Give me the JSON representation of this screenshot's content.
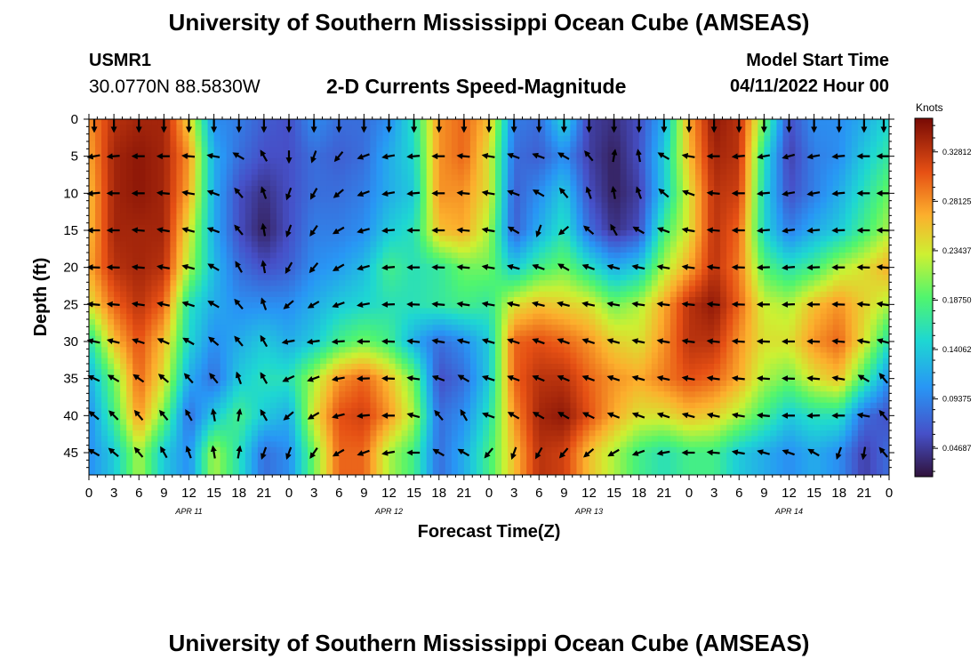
{
  "header": {
    "title": "University of Southern Mississippi Ocean Cube (AMSEAS)",
    "station_id": "USMR1",
    "station_coords": "30.0770N  88.5830W",
    "plot_title": "2-D Currents Speed-Magnitude",
    "model_start_label": "Model Start Time",
    "model_start_value": "04/11/2022 Hour 00"
  },
  "footer": {
    "title": "University of Southern Mississippi Ocean Cube (AMSEAS)"
  },
  "chart_data": {
    "type": "heatmap",
    "title": "2-D Currents Speed-Magnitude",
    "xlabel": "Forecast Time(Z)",
    "ylabel": "Depth (ft)",
    "x_hours": [
      0,
      3,
      6,
      9,
      12,
      15,
      18,
      21,
      24,
      27,
      30,
      33,
      36,
      39,
      42,
      45,
      48,
      51,
      54,
      57,
      60,
      63,
      66,
      69,
      72,
      75,
      78,
      81,
      84,
      87,
      90,
      93,
      96
    ],
    "x_tick_labels": [
      "0",
      "3",
      "6",
      "9",
      "12",
      "15",
      "18",
      "21",
      "0",
      "3",
      "6",
      "9",
      "12",
      "15",
      "18",
      "21",
      "0",
      "3",
      "6",
      "9",
      "12",
      "15",
      "18",
      "21",
      "0",
      "3",
      "6",
      "9",
      "12",
      "15",
      "18",
      "21",
      "0"
    ],
    "day_labels": [
      {
        "label": "APR 11",
        "hour": 12
      },
      {
        "label": "APR 12",
        "hour": 36
      },
      {
        "label": "APR 13",
        "hour": 60
      },
      {
        "label": "APR 14",
        "hour": 84
      }
    ],
    "xlim": [
      0,
      96
    ],
    "depths_ft": [
      0,
      5,
      10,
      15,
      20,
      25,
      30,
      35,
      40,
      45
    ],
    "y_tick_labels": [
      "0",
      "5",
      "10",
      "15",
      "20",
      "25",
      "30",
      "35",
      "40",
      "45"
    ],
    "ylim": [
      0,
      48
    ],
    "colorbar": {
      "unit": "Knots",
      "range": [
        0.02,
        0.36
      ],
      "tick_values": [
        0.328125,
        0.28125,
        0.234375,
        0.1875,
        0.140625,
        0.09375,
        0.046875
      ],
      "tick_labels": [
        "0.32812",
        "0.28125",
        "0.23437",
        "0.18750",
        "0.14062",
        "0.09375",
        "0.04687"
      ]
    },
    "speed_knots": [
      [
        0.28,
        0.33,
        0.34,
        0.34,
        0.25,
        0.1,
        0.09,
        0.07,
        0.06,
        0.1,
        0.08,
        0.08,
        0.1,
        0.16,
        0.28,
        0.3,
        0.26,
        0.09,
        0.08,
        0.15,
        0.05,
        0.04,
        0.06,
        0.12,
        0.27,
        0.35,
        0.33,
        0.2,
        0.06,
        0.1,
        0.1,
        0.12,
        0.15
      ],
      [
        0.27,
        0.34,
        0.35,
        0.34,
        0.28,
        0.12,
        0.08,
        0.06,
        0.06,
        0.08,
        0.07,
        0.08,
        0.12,
        0.15,
        0.28,
        0.3,
        0.24,
        0.08,
        0.07,
        0.1,
        0.05,
        0.03,
        0.06,
        0.14,
        0.26,
        0.34,
        0.33,
        0.16,
        0.05,
        0.09,
        0.1,
        0.14,
        0.17
      ],
      [
        0.26,
        0.34,
        0.35,
        0.34,
        0.27,
        0.12,
        0.06,
        0.04,
        0.06,
        0.08,
        0.08,
        0.09,
        0.12,
        0.14,
        0.28,
        0.28,
        0.24,
        0.07,
        0.1,
        0.14,
        0.06,
        0.03,
        0.05,
        0.14,
        0.24,
        0.33,
        0.32,
        0.15,
        0.06,
        0.09,
        0.12,
        0.16,
        0.2
      ],
      [
        0.26,
        0.34,
        0.34,
        0.34,
        0.24,
        0.12,
        0.06,
        0.03,
        0.06,
        0.09,
        0.09,
        0.1,
        0.14,
        0.16,
        0.26,
        0.27,
        0.22,
        0.07,
        0.12,
        0.16,
        0.08,
        0.04,
        0.06,
        0.18,
        0.24,
        0.33,
        0.3,
        0.15,
        0.09,
        0.12,
        0.14,
        0.18,
        0.22
      ],
      [
        0.27,
        0.33,
        0.34,
        0.33,
        0.22,
        0.13,
        0.08,
        0.06,
        0.07,
        0.1,
        0.11,
        0.13,
        0.18,
        0.16,
        0.17,
        0.2,
        0.2,
        0.14,
        0.18,
        0.2,
        0.16,
        0.12,
        0.14,
        0.22,
        0.27,
        0.33,
        0.29,
        0.19,
        0.16,
        0.18,
        0.22,
        0.24,
        0.27
      ],
      [
        0.24,
        0.3,
        0.33,
        0.3,
        0.16,
        0.12,
        0.1,
        0.1,
        0.1,
        0.12,
        0.14,
        0.15,
        0.16,
        0.16,
        0.17,
        0.18,
        0.17,
        0.24,
        0.26,
        0.25,
        0.24,
        0.2,
        0.22,
        0.27,
        0.33,
        0.35,
        0.3,
        0.23,
        0.22,
        0.26,
        0.28,
        0.25,
        0.22
      ],
      [
        0.16,
        0.26,
        0.31,
        0.26,
        0.15,
        0.1,
        0.12,
        0.14,
        0.12,
        0.14,
        0.18,
        0.2,
        0.18,
        0.12,
        0.08,
        0.1,
        0.14,
        0.3,
        0.31,
        0.3,
        0.28,
        0.25,
        0.24,
        0.28,
        0.33,
        0.33,
        0.28,
        0.24,
        0.24,
        0.28,
        0.3,
        0.24,
        0.16
      ],
      [
        0.12,
        0.2,
        0.3,
        0.24,
        0.12,
        0.08,
        0.14,
        0.16,
        0.16,
        0.22,
        0.28,
        0.3,
        0.26,
        0.2,
        0.06,
        0.08,
        0.14,
        0.3,
        0.33,
        0.33,
        0.3,
        0.28,
        0.27,
        0.29,
        0.31,
        0.3,
        0.27,
        0.22,
        0.2,
        0.24,
        0.26,
        0.18,
        0.1
      ],
      [
        0.1,
        0.18,
        0.28,
        0.2,
        0.08,
        0.14,
        0.18,
        0.14,
        0.12,
        0.24,
        0.31,
        0.32,
        0.28,
        0.22,
        0.08,
        0.1,
        0.16,
        0.28,
        0.34,
        0.35,
        0.31,
        0.27,
        0.24,
        0.24,
        0.26,
        0.25,
        0.22,
        0.18,
        0.14,
        0.16,
        0.16,
        0.08,
        0.06
      ],
      [
        0.1,
        0.14,
        0.22,
        0.14,
        0.1,
        0.22,
        0.16,
        0.08,
        0.1,
        0.2,
        0.3,
        0.3,
        0.22,
        0.18,
        0.08,
        0.12,
        0.18,
        0.26,
        0.33,
        0.32,
        0.26,
        0.22,
        0.18,
        0.16,
        0.18,
        0.18,
        0.14,
        0.12,
        0.1,
        0.12,
        0.1,
        0.05,
        0.08
      ]
    ],
    "current_vectors_deg": [
      [
        180,
        180,
        180,
        180,
        180,
        180,
        180,
        180,
        180,
        180,
        180,
        180,
        180,
        180,
        180,
        180,
        180,
        180,
        180,
        180,
        180,
        180,
        180,
        180,
        180,
        180,
        180,
        180,
        180,
        180,
        180,
        180,
        180
      ],
      [
        260,
        265,
        270,
        270,
        275,
        280,
        300,
        330,
        180,
        200,
        220,
        250,
        260,
        265,
        270,
        275,
        280,
        290,
        290,
        300,
        320,
        10,
        350,
        300,
        280,
        270,
        265,
        260,
        255,
        260,
        265,
        270,
        270
      ],
      [
        265,
        270,
        270,
        275,
        280,
        290,
        320,
        340,
        200,
        210,
        230,
        250,
        260,
        265,
        270,
        275,
        280,
        290,
        300,
        320,
        340,
        350,
        340,
        310,
        290,
        275,
        270,
        265,
        260,
        260,
        265,
        270,
        270
      ],
      [
        270,
        270,
        275,
        280,
        285,
        290,
        320,
        350,
        200,
        215,
        240,
        255,
        265,
        270,
        270,
        275,
        280,
        300,
        200,
        230,
        310,
        330,
        300,
        290,
        280,
        275,
        270,
        265,
        262,
        265,
        268,
        270,
        272
      ],
      [
        272,
        272,
        275,
        280,
        285,
        300,
        330,
        350,
        210,
        220,
        240,
        255,
        265,
        270,
        272,
        275,
        280,
        285,
        290,
        300,
        290,
        285,
        282,
        280,
        278,
        276,
        272,
        268,
        265,
        268,
        270,
        272,
        275
      ],
      [
        275,
        275,
        278,
        282,
        288,
        300,
        320,
        340,
        230,
        240,
        250,
        260,
        268,
        272,
        275,
        278,
        280,
        282,
        284,
        284,
        282,
        280,
        278,
        277,
        276,
        275,
        272,
        270,
        268,
        270,
        272,
        275,
        278
      ],
      [
        282,
        284,
        288,
        294,
        300,
        310,
        320,
        330,
        260,
        262,
        266,
        270,
        272,
        276,
        280,
        284,
        286,
        288,
        290,
        290,
        288,
        285,
        282,
        280,
        278,
        276,
        274,
        272,
        270,
        272,
        275,
        280,
        285
      ],
      [
        295,
        300,
        305,
        310,
        318,
        320,
        340,
        330,
        245,
        250,
        260,
        268,
        272,
        278,
        290,
        300,
        288,
        290,
        292,
        292,
        290,
        288,
        285,
        282,
        280,
        278,
        276,
        274,
        272,
        275,
        280,
        300,
        320
      ],
      [
        310,
        315,
        320,
        320,
        330,
        350,
        10,
        330,
        230,
        240,
        255,
        265,
        270,
        285,
        320,
        330,
        290,
        300,
        300,
        300,
        296,
        292,
        290,
        288,
        285,
        282,
        280,
        275,
        270,
        268,
        270,
        280,
        320
      ],
      [
        300,
        310,
        320,
        330,
        340,
        350,
        10,
        200,
        200,
        215,
        240,
        250,
        260,
        270,
        300,
        300,
        220,
        200,
        210,
        220,
        230,
        240,
        250,
        260,
        270,
        275,
        280,
        285,
        290,
        300,
        200,
        190,
        320
      ]
    ]
  }
}
